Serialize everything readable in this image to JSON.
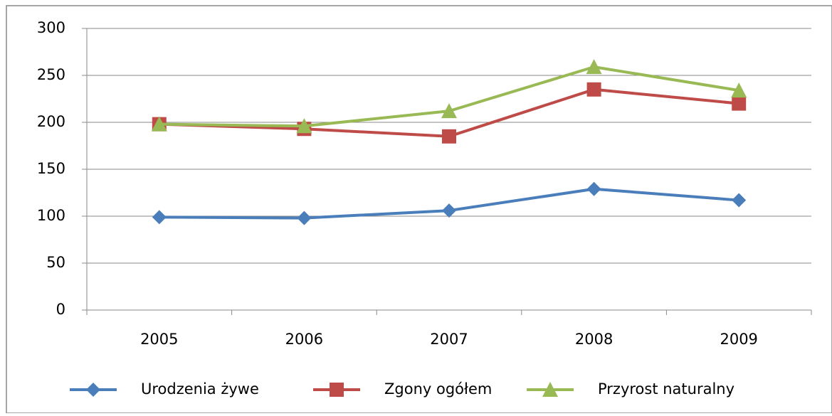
{
  "chart_data": {
    "type": "line",
    "categories": [
      "2005",
      "2006",
      "2007",
      "2008",
      "2009"
    ],
    "series": [
      {
        "name": "Urodzenia żywe",
        "color": "#4a7ebb",
        "marker": "diamond",
        "values": [
          99,
          98,
          106,
          129,
          117
        ]
      },
      {
        "name": "Zgony ogółem",
        "color": "#be4b48",
        "marker": "square",
        "values": [
          198,
          193,
          185,
          235,
          220
        ]
      },
      {
        "name": "Przyrost naturalny",
        "color": "#98b954",
        "marker": "triangle",
        "values": [
          198,
          196,
          212,
          259,
          234
        ]
      }
    ],
    "ylim": [
      0,
      300
    ],
    "yticks": [
      0,
      50,
      100,
      150,
      200,
      250,
      300
    ],
    "grid": true,
    "legend": "bottom"
  }
}
